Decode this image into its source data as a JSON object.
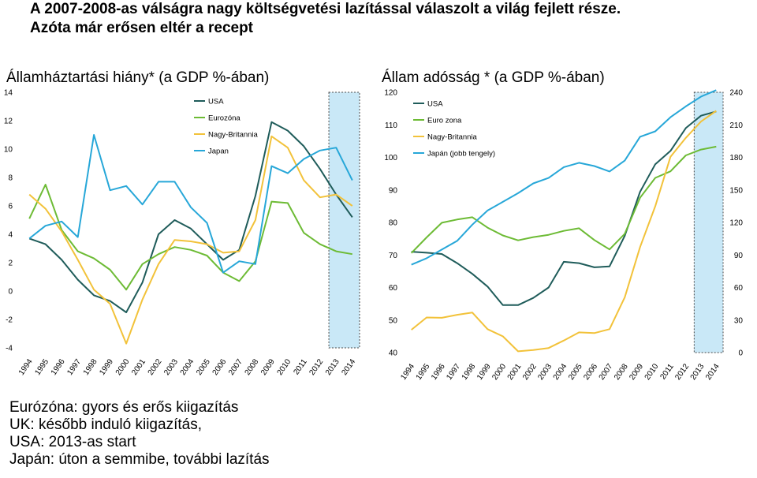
{
  "header": {
    "title_line1": "A 2007-2008-as válságra nagy költségvetési lazítással válaszolt a világ fejlett része.",
    "title_line2": "Azóta már erősen eltér a recept"
  },
  "colors": {
    "usa": "#1f5c5a",
    "euro": "#6dbb35",
    "uk": "#f2c23a",
    "japan": "#27a7d8",
    "highlight": "#c9e8f7"
  },
  "chart_data": [
    {
      "type": "line",
      "title": "Államháztartási hiány* (a GDP %-ában)",
      "categories": [
        "1994",
        "1995",
        "1996",
        "1997",
        "1998",
        "1999",
        "2000",
        "2001",
        "2002",
        "2003",
        "2004",
        "2005",
        "2006",
        "2007",
        "2008",
        "2009",
        "2010",
        "2011",
        "2012",
        "2013",
        "2014"
      ],
      "ylim": [
        -4,
        14
      ],
      "yticks": [
        "14",
        "12",
        "10",
        "8",
        "6",
        "4",
        "2",
        "0",
        "-2",
        "-4"
      ],
      "highlight": [
        "2013",
        "2014"
      ],
      "series": [
        {
          "name": "USA",
          "values": [
            3.7,
            3.3,
            2.2,
            0.8,
            -0.3,
            -0.7,
            -1.5,
            0.6,
            4.0,
            5.0,
            4.4,
            3.3,
            2.2,
            2.9,
            6.7,
            11.9,
            11.3,
            10.2,
            8.6,
            6.8,
            5.2
          ]
        },
        {
          "name": "Eurozóna",
          "values": [
            5.1,
            7.5,
            4.3,
            2.8,
            2.3,
            1.5,
            0.1,
            1.9,
            2.6,
            3.1,
            2.9,
            2.5,
            1.3,
            0.7,
            2.1,
            6.3,
            6.2,
            4.1,
            3.3,
            2.8,
            2.6
          ]
        },
        {
          "name": "Nagy-Britannia",
          "values": [
            6.8,
            5.8,
            4.2,
            2.2,
            0.1,
            -0.9,
            -3.7,
            -0.6,
            1.9,
            3.6,
            3.5,
            3.3,
            2.7,
            2.8,
            5.0,
            10.9,
            10.1,
            7.8,
            6.6,
            6.8,
            6.0
          ]
        },
        {
          "name": "Japan",
          "values": [
            3.7,
            4.6,
            4.9,
            3.8,
            11.0,
            7.1,
            7.4,
            6.1,
            7.7,
            7.7,
            5.9,
            4.8,
            1.3,
            2.1,
            1.9,
            8.8,
            8.3,
            9.3,
            9.9,
            10.1,
            7.8
          ]
        }
      ]
    },
    {
      "type": "line",
      "title": "Állam adósság * (a GDP %-ában)",
      "categories": [
        "1994",
        "1995",
        "1996",
        "1997",
        "1998",
        "1999",
        "2000",
        "2001",
        "2002",
        "2003",
        "2004",
        "2005",
        "2006",
        "2007",
        "2008",
        "2009",
        "2010",
        "2011",
        "2012",
        "2013",
        "2014"
      ],
      "ylim": [
        40,
        120
      ],
      "y2lim": [
        0,
        240
      ],
      "yticks": [
        "120",
        "110",
        "100",
        "90",
        "80",
        "70",
        "60",
        "50",
        "40"
      ],
      "y2ticks": [
        "240",
        "210",
        "180",
        "150",
        "120",
        "90",
        "60",
        "30",
        "0"
      ],
      "highlight": [
        "2013",
        "2014"
      ],
      "series": [
        {
          "name": "USA",
          "axis": "left",
          "values": [
            71.0,
            70.7,
            70.3,
            67.5,
            64.2,
            60.3,
            54.6,
            54.6,
            56.8,
            60.0,
            67.9,
            67.5,
            66.2,
            66.5,
            75.9,
            89.4,
            97.9,
            102.0,
            109.0,
            112.8,
            114.1
          ]
        },
        {
          "name": "Euro zona",
          "axis": "left",
          "values": [
            70.6,
            75.4,
            79.9,
            80.9,
            81.6,
            78.4,
            76.0,
            74.5,
            75.5,
            76.2,
            77.4,
            78.2,
            74.6,
            71.7,
            76.5,
            87.6,
            93.7,
            95.7,
            100.6,
            102.4,
            103.3
          ]
        },
        {
          "name": "Nagy-Britannia",
          "axis": "left",
          "values": [
            47.0,
            50.8,
            50.7,
            51.6,
            52.3,
            47.2,
            45.0,
            40.4,
            40.8,
            41.4,
            43.7,
            46.2,
            46.0,
            47.2,
            57.0,
            72.4,
            85.0,
            100.2,
            106.0,
            111.0,
            114.3
          ]
        },
        {
          "name": "Japán (jobb tengely)",
          "axis": "right",
          "values": [
            81,
            87,
            95,
            103,
            118,
            131,
            139,
            147,
            156,
            161,
            171,
            175,
            172,
            167,
            177,
            199,
            204,
            217,
            227,
            236,
            242
          ]
        }
      ]
    }
  ],
  "notes": [
    "Eurózóna: gyors és erős kiigazítás",
    "UK: később induló kiigazítás,",
    "USA: 2013-as start",
    "Japán: úton a semmibe, további lazítás"
  ]
}
